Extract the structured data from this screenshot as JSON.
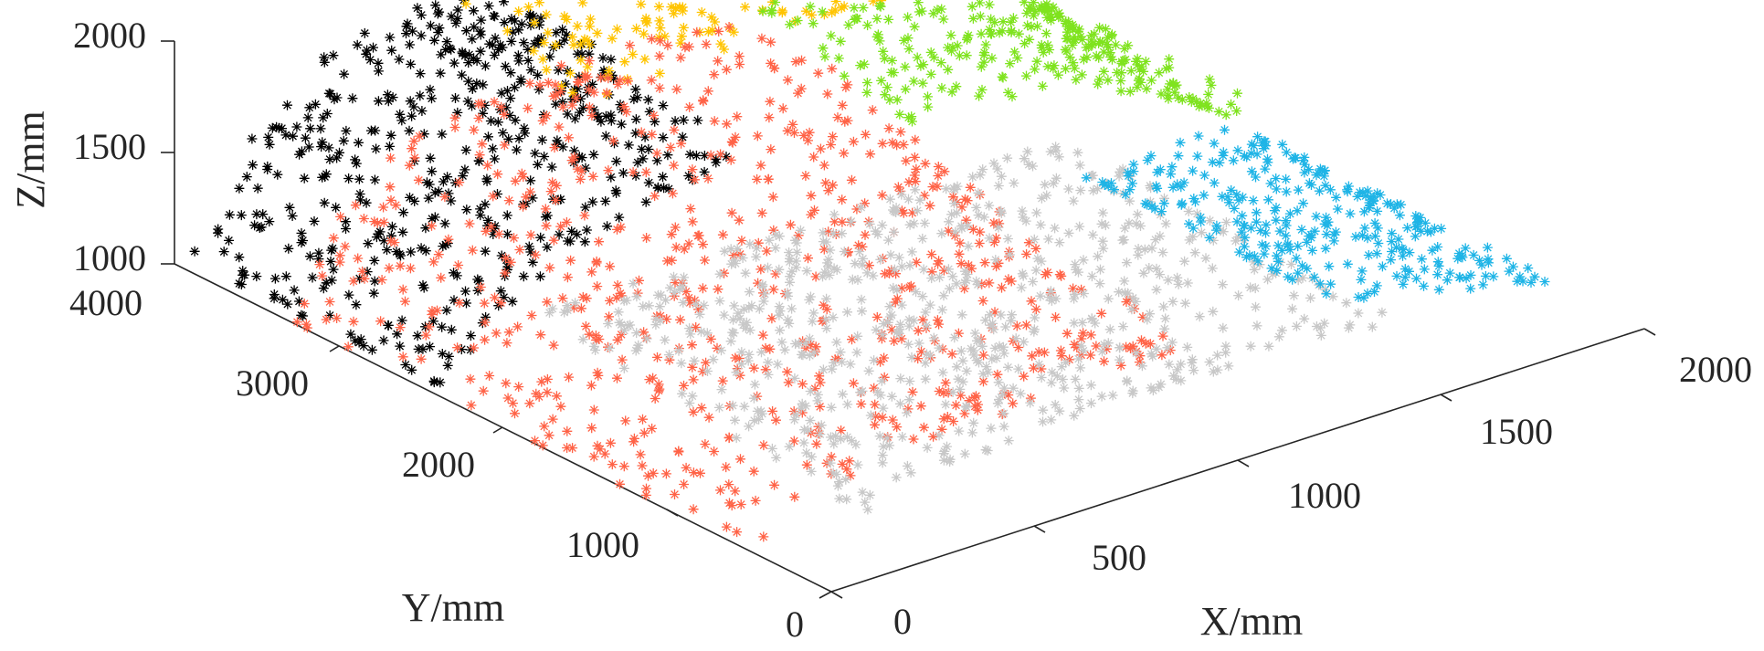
{
  "chart_data": {
    "type": "scatter",
    "subtype": "3d-scatter",
    "marker": "asterisk",
    "title": "",
    "xlabel": "X/mm",
    "ylabel": "Y/mm",
    "zlabel": "Z/mm",
    "xlim": [
      0,
      2000
    ],
    "ylim": [
      0,
      4000
    ],
    "zlim": [
      1000,
      2000
    ],
    "x_ticks": [
      "0",
      "500",
      "1000",
      "1500",
      "2000"
    ],
    "y_ticks": [
      "0",
      "1000",
      "2000",
      "3000",
      "4000"
    ],
    "z_ticks": [
      "1000",
      "1500",
      "2000"
    ],
    "grid": false,
    "legend": "none",
    "clusters": [
      {
        "color": "#000000",
        "approx_x": [
          0,
          750
        ],
        "approx_y": [
          2400,
          4000
        ],
        "approx_z": [
          1050,
          1800
        ]
      },
      {
        "color": "#FFC400",
        "approx_x": [
          600,
          1650
        ],
        "approx_y": [
          3000,
          4000
        ],
        "approx_z": [
          1650,
          1950
        ]
      },
      {
        "color": "#7FE31E",
        "approx_x": [
          1100,
          2000
        ],
        "approx_y": [
          2300,
          4000
        ],
        "approx_z": [
          1150,
          1800
        ]
      },
      {
        "color": "#FF6347",
        "approx_x": [
          0,
          1100
        ],
        "approx_y": [
          500,
          3400
        ],
        "approx_z": [
          1000,
          1700
        ]
      },
      {
        "color": "#C8C8C8",
        "approx_x": [
          200,
          1500
        ],
        "approx_y": [
          300,
          2300
        ],
        "approx_z": [
          1000,
          1300
        ]
      },
      {
        "color": "#1EB4E6",
        "approx_x": [
          1450,
          2000
        ],
        "approx_y": [
          500,
          2100
        ],
        "approx_z": [
          1000,
          1250
        ]
      }
    ]
  },
  "axes": {
    "x_ticks": [
      "0",
      "500",
      "1000",
      "1500",
      "2000"
    ],
    "y_ticks": [
      "0",
      "1000",
      "2000",
      "3000",
      "4000"
    ],
    "z_ticks": [
      "1000",
      "1500",
      "2000"
    ],
    "xlabel": "X/mm",
    "ylabel": "Y/mm",
    "zlabel": "Z/mm"
  }
}
